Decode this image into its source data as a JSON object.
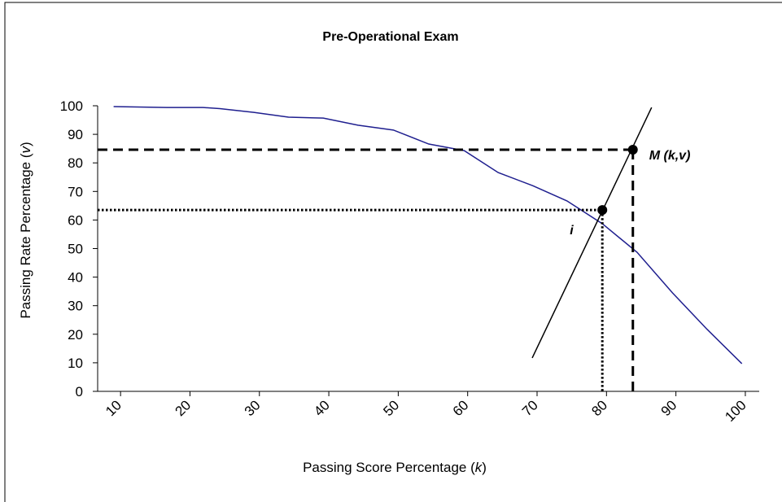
{
  "chart_data": {
    "type": "line",
    "title": "Pre-Operational  Exam",
    "xlabel": [
      "Passing Score Percentage (",
      "k",
      ")"
    ],
    "ylabel": [
      "Passing Rate Percentage (",
      "v",
      ")"
    ],
    "xlim": [
      6.7,
      102
    ],
    "ylim": [
      0,
      100
    ],
    "xticks": [
      10,
      20,
      30,
      40,
      50,
      60,
      70,
      80,
      90,
      100
    ],
    "yticks": [
      0,
      10,
      20,
      30,
      40,
      50,
      60,
      70,
      80,
      90,
      100
    ],
    "series": [
      {
        "color": "#1f1f8f",
        "x": [
          9.0,
          16.7,
          21.9,
          24.3,
          29.2,
          34.2,
          39.2,
          44.2,
          49.3,
          54.4,
          59.5,
          64.4,
          69.4,
          74.3,
          79.4,
          84.4,
          89.5,
          94.5,
          99.5
        ],
        "values": [
          99.7,
          99.4,
          99.4,
          99,
          97.7,
          96,
          95.7,
          93.2,
          91.5,
          86.6,
          84.3,
          76.6,
          72,
          66.7,
          58.7,
          48.7,
          34.5,
          21.7,
          9.7
        ]
      }
    ],
    "reference_line": {
      "color": "#000000",
      "x": [
        69.3,
        86.5
      ],
      "values": [
        11.7,
        99.4
      ]
    },
    "points": [
      {
        "label": "M (k,v)",
        "x": 83.8,
        "value": 84.6,
        "guide": "dashed"
      },
      {
        "label": "i",
        "x": 79.4,
        "value": 63.5,
        "guide": "dotted"
      }
    ]
  }
}
